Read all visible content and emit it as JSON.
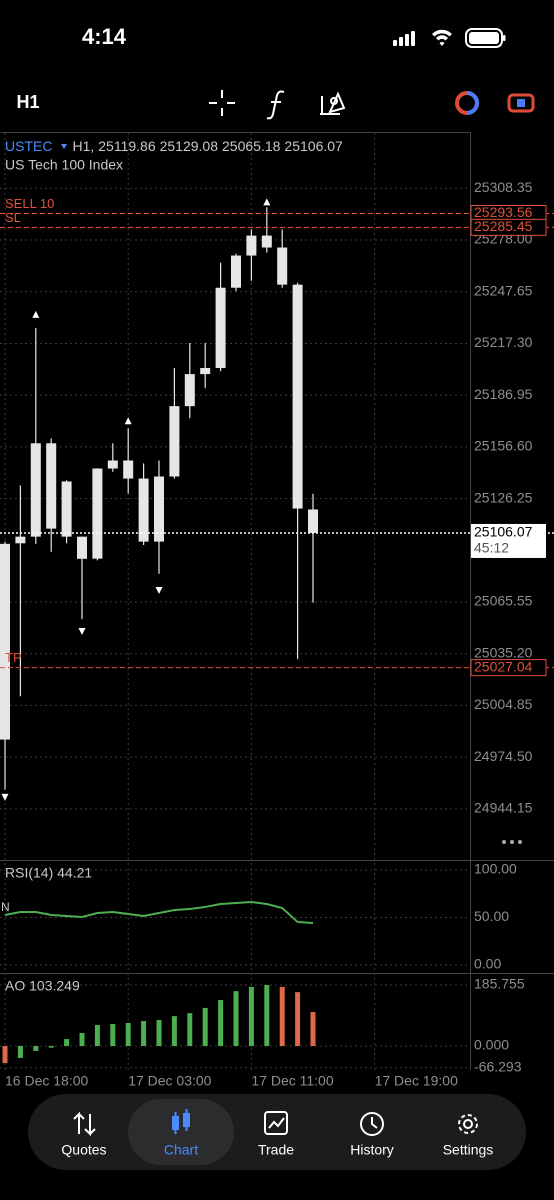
{
  "status_bar": {
    "time": "4:14"
  },
  "toolbar": {
    "timeframe": "H1"
  },
  "chart_data": [
    {
      "type": "candlestick",
      "symbol": "USTEC",
      "timeframe_label": "H1,",
      "description": "US Tech 100 Index",
      "categories": [
        "16 Dec 18:00",
        null,
        null,
        null,
        null,
        null,
        null,
        null,
        "17 Dec 03:00",
        null,
        null,
        null,
        null,
        null,
        null,
        null,
        "17 Dec 11:00",
        null,
        null,
        null,
        null,
        null,
        null,
        null,
        "17 Dec 19:00"
      ],
      "open": [
        25099.7,
        25100.0,
        25103.9,
        25158.7,
        25136.3,
        25103.9,
        25091.0,
        25143.9,
        25148.6,
        25138.0,
        25101.0,
        25139.2,
        25180.5,
        25199.3,
        25202.9,
        25250.0,
        25268.9,
        25280.6,
        25273.6,
        25251.8,
        25119.86,
        null,
        null,
        null,
        null
      ],
      "high": [
        25101.0,
        25133.9,
        25226.4,
        25161.6,
        25137.0,
        25104.0,
        25144.0,
        25158.7,
        25167.5,
        25146.9,
        25148.6,
        25202.9,
        25217.6,
        25217.6,
        25264.7,
        25270.0,
        25284.2,
        25297.2,
        25284.2,
        25253.0,
        25129.08,
        null,
        null,
        null,
        null
      ],
      "low": [
        24955.4,
        25010.2,
        25099.7,
        25095.0,
        25100.0,
        25055.5,
        25090.0,
        25142.0,
        25129.2,
        25099.0,
        25082.1,
        25138.0,
        25173.4,
        25191.1,
        25201.0,
        25248.0,
        25254.1,
        25270.6,
        25250.0,
        25032.0,
        25065.18,
        null,
        null,
        null,
        null
      ],
      "close": [
        24984.8,
        25103.9,
        25158.7,
        25108.6,
        25103.9,
        25090.9,
        25143.9,
        25148.6,
        25138.0,
        25101.0,
        25139.2,
        25180.5,
        25199.3,
        25202.9,
        25250.0,
        25268.9,
        25280.6,
        25273.6,
        25251.8,
        25120.4,
        25106.07,
        null,
        null,
        null,
        null
      ],
      "fractal_up": [
        null,
        null,
        25234.1,
        null,
        null,
        null,
        null,
        null,
        25171.6,
        null,
        null,
        null,
        null,
        null,
        null,
        null,
        null,
        25300.1,
        null,
        null,
        null,
        null,
        null,
        null,
        null
      ],
      "fractal_down": [
        24951.2,
        null,
        null,
        null,
        null,
        25048.5,
        null,
        null,
        null,
        null,
        25072.6,
        null,
        null,
        null,
        null,
        null,
        null,
        null,
        null,
        null,
        null,
        null,
        null,
        null,
        null
      ],
      "color": "#e6e6e6",
      "ylim": [
        24915.3,
        25341.4
      ],
      "yticks": [
        {
          "value": 25308.35,
          "label": "25308.35"
        },
        {
          "value": 25278.0,
          "label": "25278.00"
        },
        {
          "value": 25247.65,
          "label": "25247.65"
        },
        {
          "value": 25217.3,
          "label": "25217.30"
        },
        {
          "value": 25186.95,
          "label": "25186.95"
        },
        {
          "value": 25156.6,
          "label": "25156.60"
        },
        {
          "value": 25126.25,
          "label": "25126.25"
        },
        {
          "value": 25065.55,
          "label": "25065.55"
        },
        {
          "value": 25035.2,
          "label": "25035.20"
        },
        {
          "value": 25004.85,
          "label": "25004.85"
        },
        {
          "value": 24974.5,
          "label": "24974.50"
        },
        {
          "value": 24944.15,
          "label": "24944.15"
        }
      ],
      "levels": [
        {
          "name": "SELL 10",
          "value": 25293.56,
          "color": "#e0503c",
          "line_style": "dashed"
        },
        {
          "name": "SL",
          "value": 25285.45,
          "color": "#e0503c",
          "line_style": "dashed"
        },
        {
          "name": "TP",
          "value": 25027.04,
          "color": "#e0503c",
          "line_style": "dashed"
        },
        {
          "value": 25106.07,
          "color": "#ffffff",
          "line_style": "dotted"
        }
      ],
      "countdown": "45:12"
    },
    {
      "type": "line",
      "title": "RSI(14) 44.21",
      "level_label": "N",
      "values": [
        52.6,
        55.8,
        55.8,
        52.6,
        51.6,
        50.5,
        54.7,
        55.8,
        53.7,
        51.6,
        54.7,
        57.9,
        58.9,
        61.1,
        64.2,
        65.3,
        66.3,
        64.2,
        60.0,
        45.3,
        44.21,
        null,
        null,
        null,
        null
      ],
      "color": "#4caf50",
      "ylim": [
        -7.4,
        108.4
      ],
      "yticks": [
        {
          "value": 100,
          "label": "100.00"
        },
        {
          "value": 50,
          "label": "50.00"
        },
        {
          "value": 0,
          "label": "0.00"
        }
      ]
    },
    {
      "type": "bar",
      "title": "AO 103.249",
      "values": [
        -52,
        -36.5,
        -15,
        -5,
        21,
        39.6,
        64,
        67,
        70,
        76,
        79,
        91,
        100,
        116,
        140,
        167,
        180,
        185.755,
        180,
        164,
        103.249,
        null,
        null,
        null,
        null
      ],
      "colors": [
        "#e0694a",
        "#4caf50",
        "#4caf50",
        "#4caf50",
        "#4caf50",
        "#4caf50",
        "#4caf50",
        "#4caf50",
        "#4caf50",
        "#4caf50",
        "#4caf50",
        "#4caf50",
        "#4caf50",
        "#4caf50",
        "#4caf50",
        "#4caf50",
        "#4caf50",
        "#4caf50",
        "#e0694a",
        "#e0694a",
        "#e0694a",
        null,
        null,
        null,
        null
      ],
      "ylim": [
        -73.1,
        216.2
      ],
      "yticks": [
        {
          "value": 185.755,
          "label": "185.755"
        },
        {
          "value": 0,
          "label": "0.000"
        },
        {
          "value": -66.293,
          "label": "-66.293"
        }
      ]
    }
  ],
  "tab_bar": {
    "tabs": [
      "Quotes",
      "Chart",
      "Trade",
      "History",
      "Settings"
    ],
    "active": 1
  }
}
